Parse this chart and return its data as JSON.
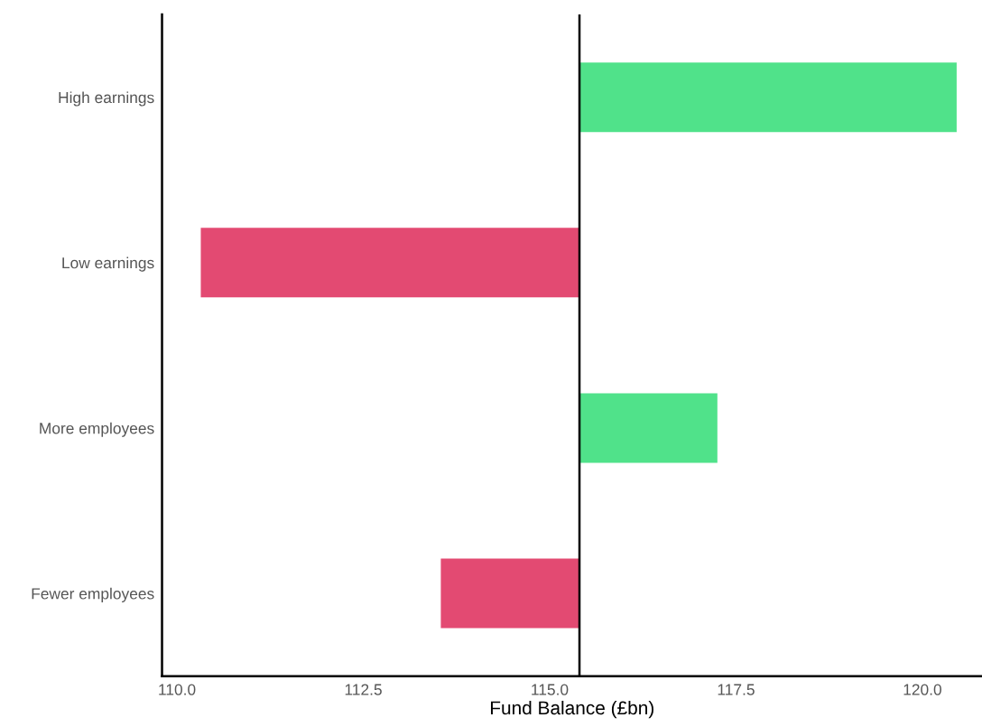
{
  "chart_data": {
    "type": "bar",
    "orientation": "horizontal",
    "xlabel": "Fund Balance (£bn)",
    "categories": [
      "High earnings",
      "Low earnings",
      "More employees",
      "Fewer employees"
    ],
    "base": [
      115.4,
      115.4,
      115.4,
      115.4
    ],
    "values": [
      5.06,
      -5.08,
      1.85,
      -1.86
    ],
    "colors": [
      "#50e28a",
      "#e34a72",
      "#50e28a",
      "#e34a72"
    ],
    "xlim": [
      109.8,
      120.8
    ],
    "xticks": [
      {
        "value": 110,
        "label": "110.0"
      },
      {
        "value": 112.5,
        "label": "112.5"
      },
      {
        "value": 115,
        "label": "115.0"
      },
      {
        "value": 117.5,
        "label": "117.5"
      },
      {
        "value": 120,
        "label": "120.0"
      }
    ],
    "ref_lines": [
      {
        "axis": "x",
        "value": 115.4,
        "color": "#000000"
      }
    ],
    "grid": false
  }
}
